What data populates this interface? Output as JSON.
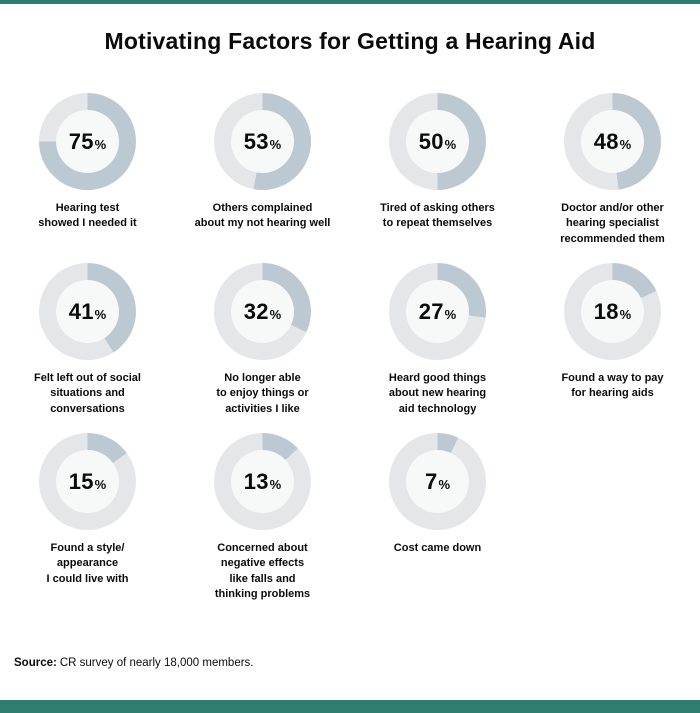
{
  "chart_data": {
    "type": "pie",
    "subtype": "donut-grid",
    "title": "Motivating Factors for Getting a Hearing Aid",
    "unit": "%",
    "items": [
      {
        "value": 75,
        "label": "Hearing test showed I needed it",
        "label_lines": [
          "Hearing test",
          "showed I needed it"
        ]
      },
      {
        "value": 53,
        "label": "Others complained about my not hearing well",
        "label_lines": [
          "Others complained",
          "about my not hearing well"
        ]
      },
      {
        "value": 50,
        "label": "Tired of asking others to repeat themselves",
        "label_lines": [
          "Tired of asking others",
          "to repeat themselves"
        ]
      },
      {
        "value": 48,
        "label": "Doctor and/or other hearing specialist recommended them",
        "label_lines": [
          "Doctor and/or other",
          "hearing specialist",
          "recommended them"
        ]
      },
      {
        "value": 41,
        "label": "Felt left out of social situations and conversations",
        "label_lines": [
          "Felt left out of social",
          "situations and",
          "conversations"
        ]
      },
      {
        "value": 32,
        "label": "No longer able to enjoy things or activities I like",
        "label_lines": [
          "No longer able",
          "to enjoy things or",
          "activities I like"
        ]
      },
      {
        "value": 27,
        "label": "Heard good things about new hearing aid technology",
        "label_lines": [
          "Heard good things",
          "about new hearing",
          "aid technology"
        ]
      },
      {
        "value": 18,
        "label": "Found a way to pay for hearing aids",
        "label_lines": [
          "Found a way to pay",
          "for hearing aids"
        ]
      },
      {
        "value": 15,
        "label": "Found a style/ appearance I could live with",
        "label_lines": [
          "Found a style/",
          "appearance",
          "I could live with"
        ]
      },
      {
        "value": 13,
        "label": "Concerned about negative effects like falls and thinking problems",
        "label_lines": [
          "Concerned about",
          "negative effects",
          "like falls and",
          "thinking problems"
        ]
      },
      {
        "value": 7,
        "label": "Cost came down",
        "label_lines": [
          "Cost came down"
        ]
      }
    ],
    "colors": {
      "filled": "#bcc9d3",
      "track": "#e4e6e7",
      "inner": "#f7f8f8",
      "accent": "#2f7d6f",
      "text": "#0b0b0b"
    },
    "source_label": "Source:",
    "source_text": "CR survey of nearly 18,000 members.",
    "legend": "none",
    "grid": "off"
  }
}
